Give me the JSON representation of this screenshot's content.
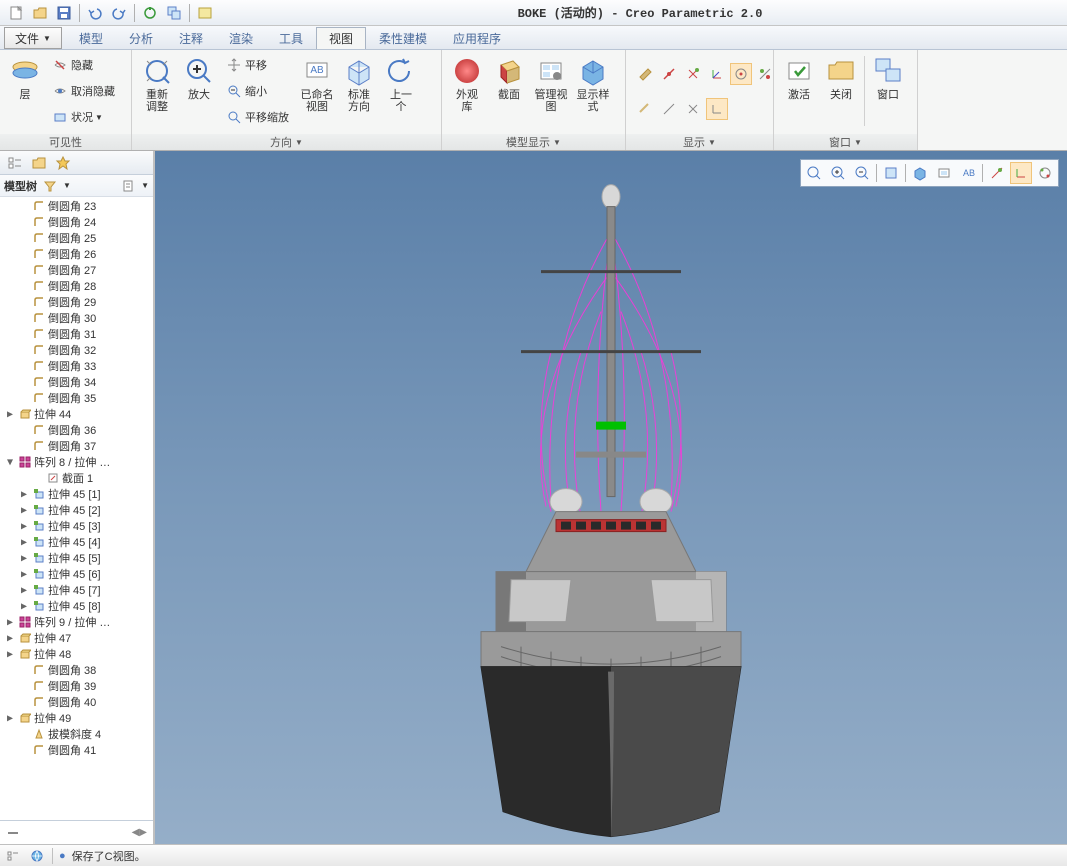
{
  "title": "BOKE (活动的) - Creo Parametric 2.0",
  "file_btn": "文件",
  "tabs": [
    "模型",
    "分析",
    "注释",
    "渲染",
    "工具",
    "视图",
    "柔性建模",
    "应用程序"
  ],
  "active_tab": 5,
  "ribbon": {
    "groups": [
      {
        "label": "可见性",
        "items_sm": [
          {
            "k": "hide",
            "t": "隐藏"
          },
          {
            "k": "unhide",
            "t": "取消隐藏"
          },
          {
            "k": "status",
            "t": "状况"
          }
        ],
        "big": [
          {
            "k": "layer",
            "t": "层"
          }
        ]
      },
      {
        "label": "方向",
        "big": [
          {
            "k": "refit",
            "t": "重新\n调整"
          },
          {
            "k": "zoomin",
            "t": "放大"
          }
        ],
        "items_sm": [
          {
            "k": "pan",
            "t": "平移"
          },
          {
            "k": "zoomout",
            "t": "缩小"
          },
          {
            "k": "panzoom",
            "t": "平移缩放"
          }
        ],
        "big2": [
          {
            "k": "named",
            "t": "已命名\n视图"
          },
          {
            "k": "stdorient",
            "t": "标准\n方向"
          },
          {
            "k": "prev",
            "t": "上一\n个"
          }
        ]
      },
      {
        "label": "模型显示",
        "big": [
          {
            "k": "appear",
            "t": "外观\n库"
          },
          {
            "k": "section",
            "t": "截面"
          },
          {
            "k": "mgrview",
            "t": "管理视图"
          },
          {
            "k": "dispstyle",
            "t": "显示样\n式"
          }
        ]
      },
      {
        "label": "显示"
      },
      {
        "label": "窗口",
        "big": [
          {
            "k": "activate",
            "t": "激活"
          },
          {
            "k": "close",
            "t": "关闭"
          }
        ],
        "big2": [
          {
            "k": "window",
            "t": "窗口"
          }
        ]
      }
    ]
  },
  "sidebar": {
    "header": "模型树",
    "items": [
      {
        "ind": 1,
        "tw": "",
        "ic": "round",
        "t": "倒圆角 23"
      },
      {
        "ind": 1,
        "tw": "",
        "ic": "round",
        "t": "倒圆角 24"
      },
      {
        "ind": 1,
        "tw": "",
        "ic": "round",
        "t": "倒圆角 25"
      },
      {
        "ind": 1,
        "tw": "",
        "ic": "round",
        "t": "倒圆角 26"
      },
      {
        "ind": 1,
        "tw": "",
        "ic": "round",
        "t": "倒圆角 27"
      },
      {
        "ind": 1,
        "tw": "",
        "ic": "round",
        "t": "倒圆角 28"
      },
      {
        "ind": 1,
        "tw": "",
        "ic": "round",
        "t": "倒圆角 29"
      },
      {
        "ind": 1,
        "tw": "",
        "ic": "round",
        "t": "倒圆角 30"
      },
      {
        "ind": 1,
        "tw": "",
        "ic": "round",
        "t": "倒圆角 31"
      },
      {
        "ind": 1,
        "tw": "",
        "ic": "round",
        "t": "倒圆角 32"
      },
      {
        "ind": 1,
        "tw": "",
        "ic": "round",
        "t": "倒圆角 33"
      },
      {
        "ind": 1,
        "tw": "",
        "ic": "round",
        "t": "倒圆角 34"
      },
      {
        "ind": 1,
        "tw": "",
        "ic": "round",
        "t": "倒圆角 35"
      },
      {
        "ind": 0,
        "tw": "▶",
        "ic": "extr",
        "t": "拉伸 44"
      },
      {
        "ind": 1,
        "tw": "",
        "ic": "round",
        "t": "倒圆角 36"
      },
      {
        "ind": 1,
        "tw": "",
        "ic": "round",
        "t": "倒圆角 37"
      },
      {
        "ind": 0,
        "tw": "▼",
        "ic": "pattern",
        "t": "阵列 8 / 拉伸 …"
      },
      {
        "ind": 2,
        "tw": "",
        "ic": "sketch",
        "t": "截面 1"
      },
      {
        "ind": 1,
        "tw": "▶",
        "ic": "extr2",
        "t": "拉伸 45 [1]"
      },
      {
        "ind": 1,
        "tw": "▶",
        "ic": "extr2",
        "t": "拉伸 45 [2]"
      },
      {
        "ind": 1,
        "tw": "▶",
        "ic": "extr2",
        "t": "拉伸 45 [3]"
      },
      {
        "ind": 1,
        "tw": "▶",
        "ic": "extr2",
        "t": "拉伸 45 [4]"
      },
      {
        "ind": 1,
        "tw": "▶",
        "ic": "extr2",
        "t": "拉伸 45 [5]"
      },
      {
        "ind": 1,
        "tw": "▶",
        "ic": "extr2",
        "t": "拉伸 45 [6]"
      },
      {
        "ind": 1,
        "tw": "▶",
        "ic": "extr2",
        "t": "拉伸 45 [7]"
      },
      {
        "ind": 1,
        "tw": "▶",
        "ic": "extr2",
        "t": "拉伸 45 [8]"
      },
      {
        "ind": 0,
        "tw": "▶",
        "ic": "pattern",
        "t": "阵列 9 / 拉伸 …"
      },
      {
        "ind": 0,
        "tw": "▶",
        "ic": "extr",
        "t": "拉伸 47"
      },
      {
        "ind": 0,
        "tw": "▶",
        "ic": "extr",
        "t": "拉伸 48"
      },
      {
        "ind": 1,
        "tw": "",
        "ic": "round",
        "t": "倒圆角 38"
      },
      {
        "ind": 1,
        "tw": "",
        "ic": "round",
        "t": "倒圆角 39"
      },
      {
        "ind": 1,
        "tw": "",
        "ic": "round",
        "t": "倒圆角 40"
      },
      {
        "ind": 0,
        "tw": "▶",
        "ic": "extr",
        "t": "拉伸 49"
      },
      {
        "ind": 1,
        "tw": "",
        "ic": "draft",
        "t": "拔模斜度 4"
      },
      {
        "ind": 1,
        "tw": "",
        "ic": "round",
        "t": "倒圆角 41"
      }
    ]
  },
  "status_text": "保存了C视图。",
  "colors": {
    "sky_top": "#5a7fa8",
    "sky_bot": "#95aec8",
    "hull": "#4a4a4a",
    "hull_light": "#6a6a6a",
    "hull_dark": "#2a2a2a",
    "deck": "#888888",
    "super": "#9a9a9a",
    "super_light": "#b5b5b5",
    "super_dark": "#787878",
    "dome": "#d8d8d8",
    "wire": "#ff00ff",
    "green": "#00c000"
  }
}
